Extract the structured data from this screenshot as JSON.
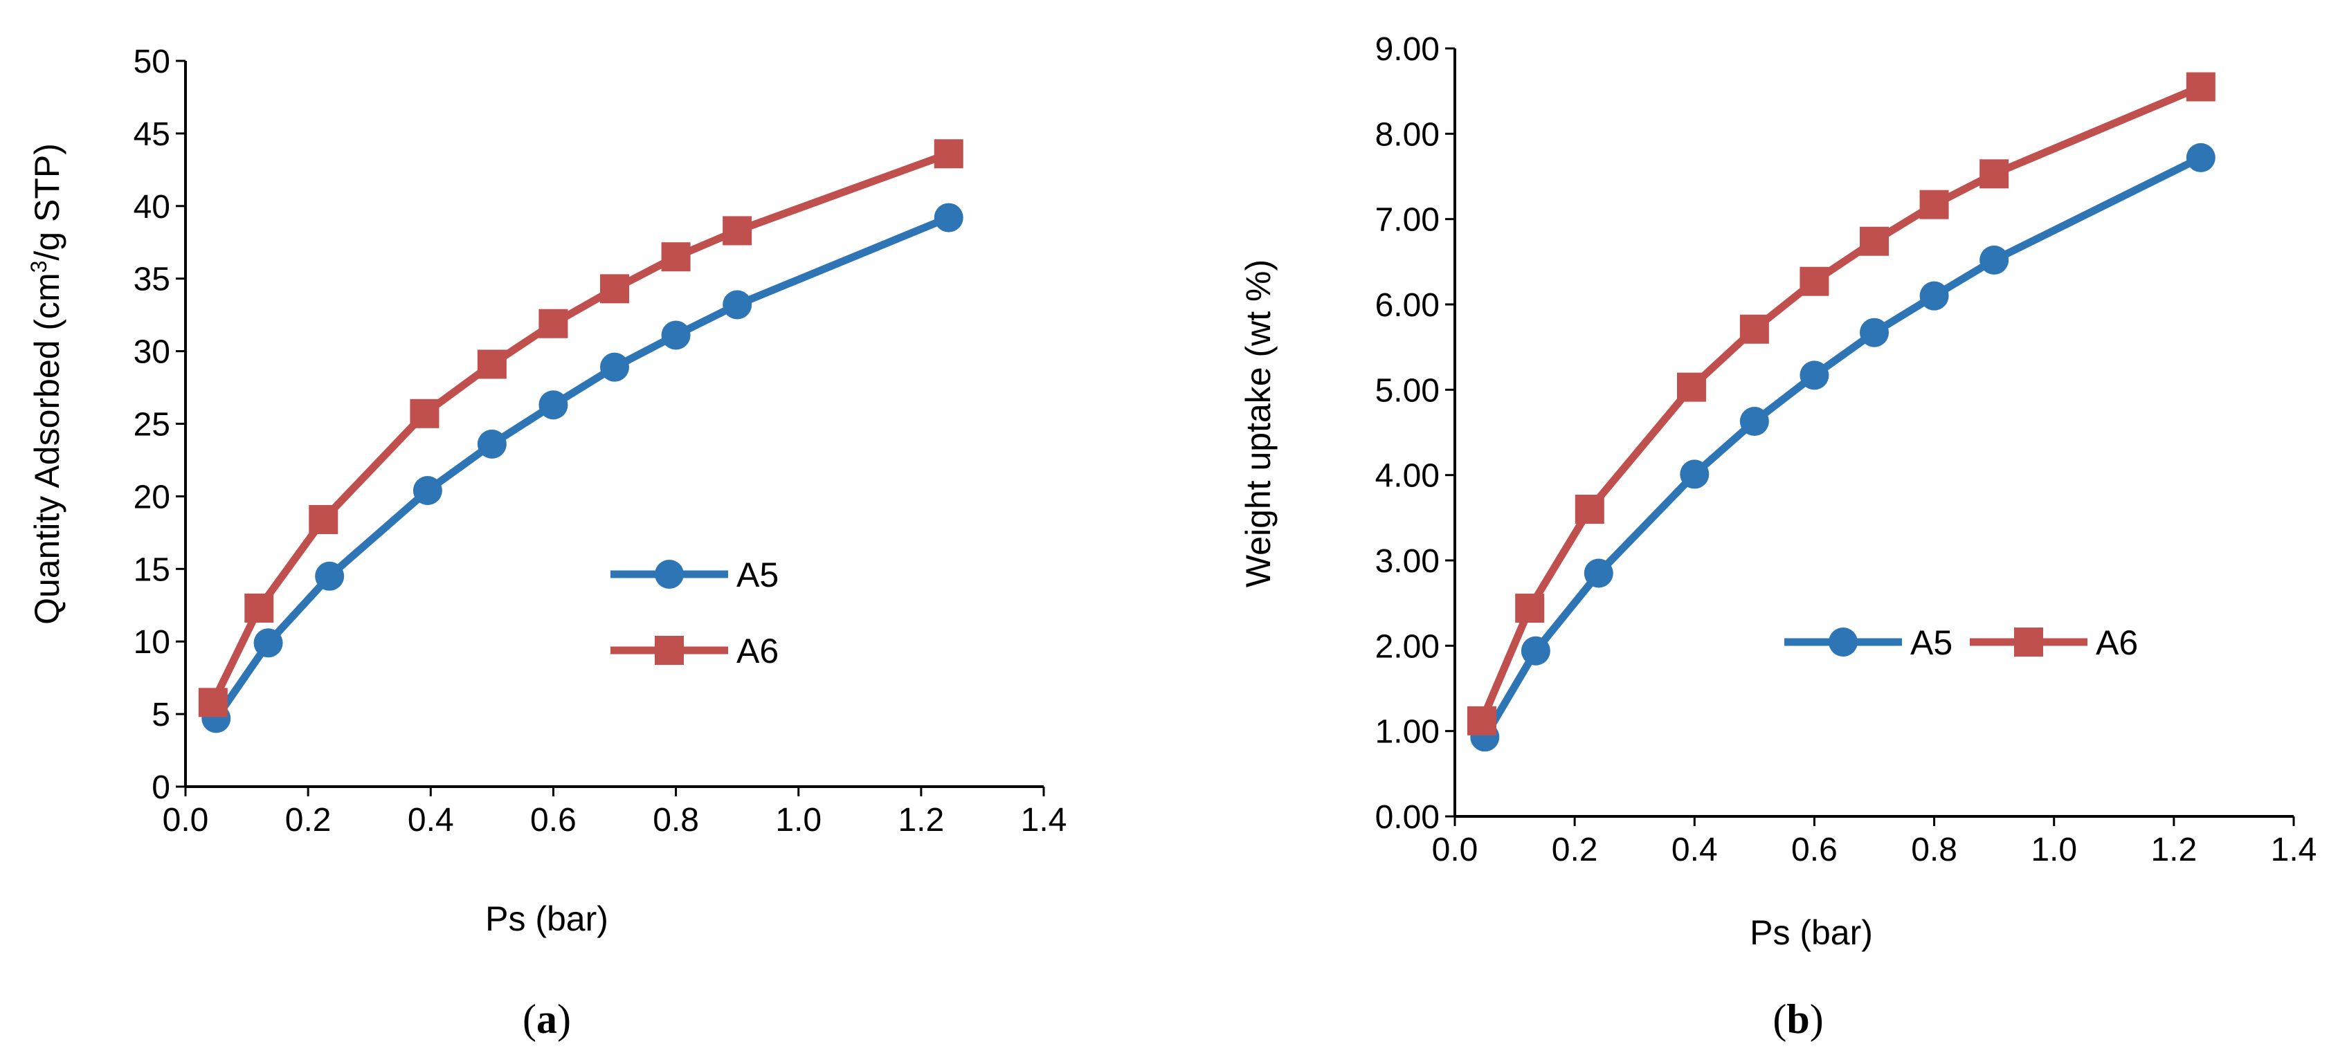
{
  "colors": {
    "A5": "#2e75b6",
    "A6": "#c0504d",
    "axis": "#000000"
  },
  "chart_data": [
    {
      "type": "line",
      "panel_label": {
        "open": "(",
        "letter": "a",
        "close": ")"
      },
      "xlabel": "Ps (bar)",
      "ylabel_parts": {
        "pre": "Quantity Adsorbed (cm",
        "sup": "3",
        "post": "/g STP)"
      },
      "xlim": [
        0,
        1.4
      ],
      "ylim": [
        0,
        50
      ],
      "x_ticks": [
        {
          "v": 0.0,
          "label": "0.0"
        },
        {
          "v": 0.2,
          "label": "0.2"
        },
        {
          "v": 0.4,
          "label": "0.4"
        },
        {
          "v": 0.6,
          "label": "0.6"
        },
        {
          "v": 0.8,
          "label": "0.8"
        },
        {
          "v": 1.0,
          "label": "1.0"
        },
        {
          "v": 1.2,
          "label": "1.2"
        },
        {
          "v": 1.4,
          "label": "1.4"
        }
      ],
      "y_ticks": [
        {
          "v": 0,
          "label": "0"
        },
        {
          "v": 5,
          "label": "5"
        },
        {
          "v": 10,
          "label": "10"
        },
        {
          "v": 15,
          "label": "15"
        },
        {
          "v": 20,
          "label": "20"
        },
        {
          "v": 25,
          "label": "25"
        },
        {
          "v": 30,
          "label": "30"
        },
        {
          "v": 35,
          "label": "35"
        },
        {
          "v": 40,
          "label": "40"
        },
        {
          "v": 45,
          "label": "45"
        },
        {
          "v": 50,
          "label": "50"
        }
      ],
      "grid": false,
      "legend": {
        "placement": "center-right",
        "layout": "vertical"
      },
      "series": [
        {
          "name": "A5",
          "marker": "circle",
          "x": [
            0.05,
            0.135,
            0.235,
            0.395,
            0.5,
            0.6,
            0.7,
            0.8,
            0.9,
            1.245
          ],
          "y": [
            4.7,
            9.9,
            14.5,
            20.4,
            23.6,
            26.3,
            28.9,
            31.1,
            33.2,
            39.2
          ]
        },
        {
          "name": "A6",
          "marker": "square",
          "x": [
            0.045,
            0.12,
            0.225,
            0.39,
            0.5,
            0.6,
            0.7,
            0.8,
            0.9,
            1.245
          ],
          "y": [
            5.8,
            12.3,
            18.4,
            25.7,
            29.1,
            31.9,
            34.3,
            36.5,
            38.3,
            43.6
          ]
        }
      ]
    },
    {
      "type": "line",
      "panel_label": {
        "open": "(",
        "letter": "b",
        "close": ")"
      },
      "xlabel": "Ps (bar)",
      "ylabel": "Weight uptake (wt %)",
      "xlim": [
        0,
        1.4
      ],
      "ylim": [
        0,
        9
      ],
      "x_ticks": [
        {
          "v": 0.0,
          "label": "0.0"
        },
        {
          "v": 0.2,
          "label": "0.2"
        },
        {
          "v": 0.4,
          "label": "0.4"
        },
        {
          "v": 0.6,
          "label": "0.6"
        },
        {
          "v": 0.8,
          "label": "0.8"
        },
        {
          "v": 1.0,
          "label": "1.0"
        },
        {
          "v": 1.2,
          "label": "1.2"
        },
        {
          "v": 1.4,
          "label": "1.4"
        }
      ],
      "y_ticks": [
        {
          "v": 0,
          "label": "0.00"
        },
        {
          "v": 1,
          "label": "1.00"
        },
        {
          "v": 2,
          "label": "2.00"
        },
        {
          "v": 3,
          "label": "3.00"
        },
        {
          "v": 4,
          "label": "4.00"
        },
        {
          "v": 5,
          "label": "5.00"
        },
        {
          "v": 6,
          "label": "6.00"
        },
        {
          "v": 7,
          "label": "7.00"
        },
        {
          "v": 8,
          "label": "8.00"
        },
        {
          "v": 9,
          "label": "9.00"
        }
      ],
      "grid": false,
      "legend": {
        "placement": "center-right",
        "layout": "horizontal"
      },
      "series": [
        {
          "name": "A5",
          "marker": "circle",
          "x": [
            0.05,
            0.135,
            0.24,
            0.4,
            0.5,
            0.6,
            0.7,
            0.8,
            0.9,
            1.245
          ],
          "y": [
            0.93,
            1.94,
            2.85,
            4.01,
            4.63,
            5.17,
            5.67,
            6.1,
            6.52,
            7.72
          ]
        },
        {
          "name": "A6",
          "marker": "square",
          "x": [
            0.045,
            0.125,
            0.225,
            0.395,
            0.5,
            0.6,
            0.7,
            0.8,
            0.9,
            1.245
          ],
          "y": [
            1.12,
            2.44,
            3.6,
            5.03,
            5.71,
            6.27,
            6.74,
            7.17,
            7.53,
            8.55
          ]
        }
      ]
    }
  ]
}
